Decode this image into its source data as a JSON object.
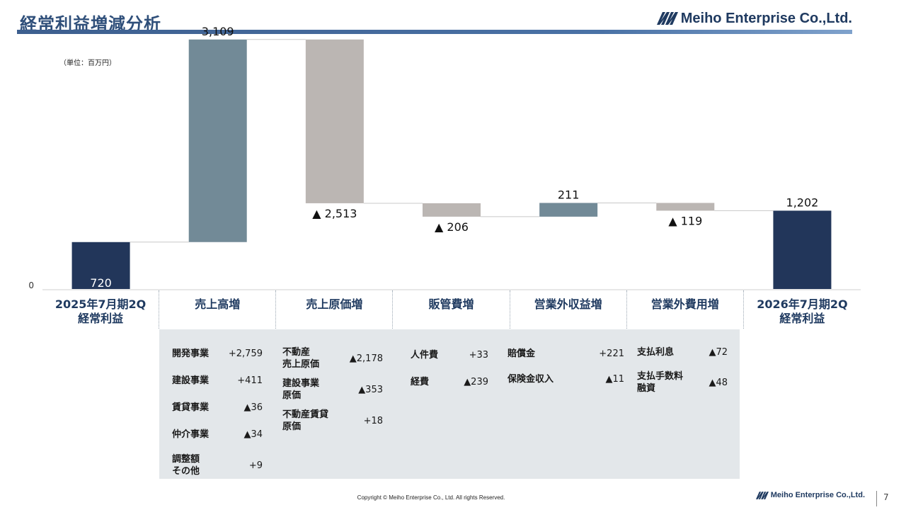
{
  "header": {
    "title": "経常利益増減分析",
    "brand": "Meiho Enterprise Co.,Ltd."
  },
  "unit_note": "（単位：百万円）",
  "chart_data": {
    "type": "waterfall",
    "ylim": [
      0,
      3300
    ],
    "zero_label": "0",
    "steps": [
      {
        "category": "2025年7月期2Q\n経常利益",
        "kind": "total",
        "value": 720,
        "label": "720"
      },
      {
        "category": "売上高増",
        "kind": "increase",
        "value": 3109,
        "label": "3,109"
      },
      {
        "category": "売上原価増",
        "kind": "decrease",
        "value": 2513,
        "label": "▲ 2,513"
      },
      {
        "category": "販管費増",
        "kind": "decrease",
        "value": 206,
        "label": "▲ 206"
      },
      {
        "category": "営業外収益増",
        "kind": "increase",
        "value": 211,
        "label": "211"
      },
      {
        "category": "営業外費用増",
        "kind": "decrease",
        "value": 119,
        "label": "▲ 119"
      },
      {
        "category": "2026年7月期2Q\n経常利益",
        "kind": "total",
        "value": 1202,
        "label": "1,202"
      }
    ],
    "colors": {
      "total": "#22365a",
      "increase": "#728a97",
      "decrease": "#bbb6b3"
    }
  },
  "breakdown": [
    {
      "items": [
        {
          "label": "開発事業",
          "value": "+2,759"
        },
        {
          "label": "建設事業",
          "value": "+411"
        },
        {
          "label": "賃貸事業",
          "value": "▲36"
        },
        {
          "label": "仲介事業",
          "value": "▲34"
        },
        {
          "label": "調整額\nその他",
          "value": "+9"
        }
      ]
    },
    {
      "items": [
        {
          "label": "不動産\n売上原価",
          "value": "▲2,178"
        },
        {
          "label": "建設事業\n原価",
          "value": "▲353"
        },
        {
          "label": "不動産賃貸\n原価",
          "value": "+18"
        }
      ]
    },
    {
      "items": [
        {
          "label": "人件費",
          "value": "+33"
        },
        {
          "label": "経費",
          "value": "▲239"
        }
      ]
    },
    {
      "items": [
        {
          "label": "賠償金",
          "value": "+221"
        },
        {
          "label": "保険金収入",
          "value": "▲11"
        }
      ]
    },
    {
      "items": [
        {
          "label": "支払利息",
          "value": "▲72"
        },
        {
          "label": "支払手数料\n融資",
          "value": "▲48"
        }
      ]
    }
  ],
  "footer": {
    "copyright": "Copyright © Meiho Enterprise Co., Ltd. All rights Reserved.",
    "brand": "Meiho Enterprise Co.,Ltd.",
    "page": "7"
  }
}
